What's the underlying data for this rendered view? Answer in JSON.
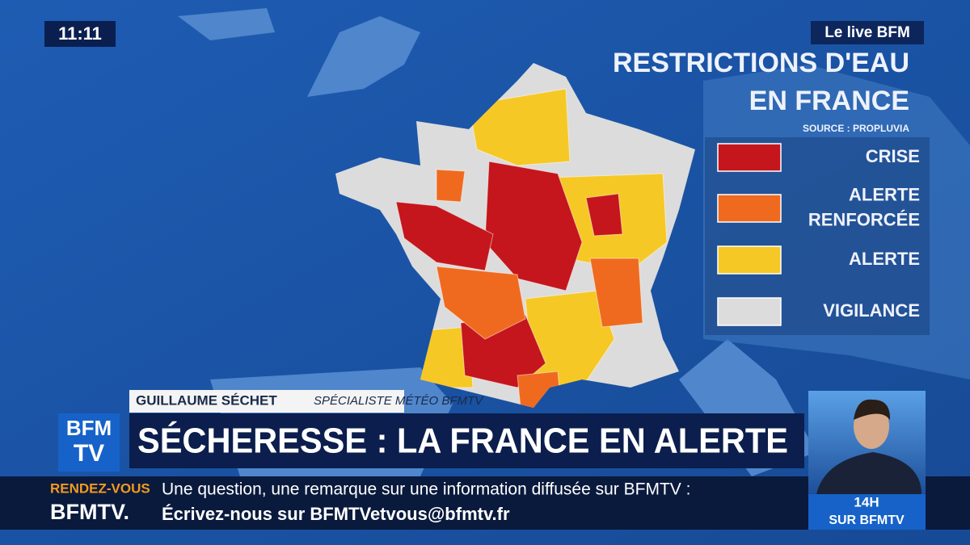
{
  "clock": "11:11",
  "channel_logo": "Le live BFM",
  "map": {
    "title_lines": [
      "RESTRICTIONS D'EAU",
      "EN FRANCE"
    ],
    "source": "SOURCE : PROPLUVIA",
    "legend": [
      {
        "label_lines": [
          "CRISE"
        ],
        "color": "#c4161c"
      },
      {
        "label_lines": [
          "ALERTE",
          "RENFORCÉE"
        ],
        "color": "#ef6a1f"
      },
      {
        "label_lines": [
          "ALERTE"
        ],
        "color": "#f6c825"
      },
      {
        "label_lines": [
          "VIGILANCE"
        ],
        "color": "#dcdcdc"
      }
    ]
  },
  "lower_third": {
    "name": "GUILLAUME SÉCHET",
    "role": "SPÉCIALISTE MÉTÉO BFMTV",
    "headline": "SÉCHERESSE : LA FRANCE EN ALERTE",
    "logo_lines": [
      "BFM",
      "TV"
    ]
  },
  "ticker": {
    "tag_lines": [
      "RENDEZ-VOUS",
      "BFMTV."
    ],
    "lines": [
      "Une question, une remarque sur une information diffusée sur BFMTV :",
      "Écrivez-nous sur BFMTVetvous@bfmtv.fr"
    ]
  },
  "inset": {
    "time": "14H",
    "channel": "SUR BFMTV"
  }
}
